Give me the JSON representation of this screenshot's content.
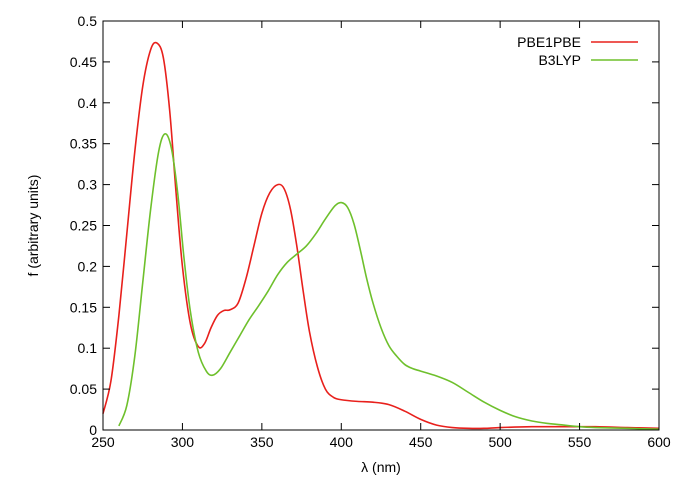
{
  "chart_data": {
    "type": "line",
    "xlabel": "λ (nm)",
    "ylabel": "f (arbitrary units)",
    "xlim": [
      250,
      600
    ],
    "ylim": [
      0,
      0.5
    ],
    "x_ticks": [
      250,
      300,
      350,
      400,
      450,
      500,
      550,
      600
    ],
    "y_ticks": [
      0,
      0.05,
      0.1,
      0.15,
      0.2,
      0.25,
      0.3,
      0.35,
      0.4,
      0.45,
      0.5
    ],
    "x_tick_labels": [
      "250",
      "300",
      "350",
      "400",
      "450",
      "500",
      "550",
      "600"
    ],
    "y_tick_labels": [
      "0",
      "0.05",
      "0.1",
      "0.15",
      "0.2",
      "0.25",
      "0.3",
      "0.35",
      "0.4",
      "0.45",
      "0.5"
    ],
    "grid": false,
    "legend_position": "top-right",
    "series": [
      {
        "name": "PBE1PBE",
        "color": "#e8201c",
        "points": [
          [
            250,
            0.02
          ],
          [
            255,
            0.06
          ],
          [
            260,
            0.14
          ],
          [
            265,
            0.24
          ],
          [
            270,
            0.34
          ],
          [
            275,
            0.42
          ],
          [
            280,
            0.465
          ],
          [
            284,
            0.473
          ],
          [
            288,
            0.455
          ],
          [
            292,
            0.39
          ],
          [
            296,
            0.29
          ],
          [
            300,
            0.2
          ],
          [
            305,
            0.13
          ],
          [
            310,
            0.102
          ],
          [
            314,
            0.106
          ],
          [
            318,
            0.125
          ],
          [
            322,
            0.14
          ],
          [
            326,
            0.146
          ],
          [
            330,
            0.147
          ],
          [
            335,
            0.155
          ],
          [
            340,
            0.185
          ],
          [
            345,
            0.225
          ],
          [
            350,
            0.265
          ],
          [
            355,
            0.29
          ],
          [
            360,
            0.3
          ],
          [
            364,
            0.295
          ],
          [
            368,
            0.27
          ],
          [
            372,
            0.225
          ],
          [
            376,
            0.17
          ],
          [
            380,
            0.12
          ],
          [
            385,
            0.077
          ],
          [
            390,
            0.05
          ],
          [
            395,
            0.04
          ],
          [
            400,
            0.037
          ],
          [
            410,
            0.035
          ],
          [
            420,
            0.034
          ],
          [
            430,
            0.031
          ],
          [
            440,
            0.023
          ],
          [
            450,
            0.013
          ],
          [
            460,
            0.006
          ],
          [
            470,
            0.003
          ],
          [
            480,
            0.002
          ],
          [
            490,
            0.002
          ],
          [
            500,
            0.003
          ],
          [
            520,
            0.004
          ],
          [
            540,
            0.004
          ],
          [
            560,
            0.004
          ],
          [
            580,
            0.003
          ],
          [
            600,
            0.002
          ]
        ]
      },
      {
        "name": "B3LYP",
        "color": "#6ec02c",
        "points": [
          [
            260,
            0.005
          ],
          [
            265,
            0.03
          ],
          [
            270,
            0.09
          ],
          [
            275,
            0.18
          ],
          [
            280,
            0.27
          ],
          [
            285,
            0.34
          ],
          [
            289,
            0.362
          ],
          [
            293,
            0.345
          ],
          [
            297,
            0.29
          ],
          [
            301,
            0.21
          ],
          [
            305,
            0.145
          ],
          [
            310,
            0.095
          ],
          [
            315,
            0.072
          ],
          [
            319,
            0.067
          ],
          [
            324,
            0.075
          ],
          [
            330,
            0.095
          ],
          [
            336,
            0.115
          ],
          [
            342,
            0.135
          ],
          [
            348,
            0.152
          ],
          [
            354,
            0.17
          ],
          [
            360,
            0.19
          ],
          [
            366,
            0.205
          ],
          [
            372,
            0.215
          ],
          [
            378,
            0.225
          ],
          [
            384,
            0.24
          ],
          [
            390,
            0.258
          ],
          [
            396,
            0.274
          ],
          [
            400,
            0.278
          ],
          [
            404,
            0.272
          ],
          [
            408,
            0.252
          ],
          [
            412,
            0.22
          ],
          [
            416,
            0.185
          ],
          [
            420,
            0.155
          ],
          [
            425,
            0.125
          ],
          [
            430,
            0.103
          ],
          [
            435,
            0.09
          ],
          [
            440,
            0.08
          ],
          [
            445,
            0.075
          ],
          [
            450,
            0.072
          ],
          [
            460,
            0.066
          ],
          [
            470,
            0.058
          ],
          [
            480,
            0.046
          ],
          [
            490,
            0.034
          ],
          [
            500,
            0.024
          ],
          [
            510,
            0.016
          ],
          [
            520,
            0.011
          ],
          [
            530,
            0.008
          ],
          [
            540,
            0.006
          ],
          [
            550,
            0.004
          ],
          [
            560,
            0.003
          ],
          [
            580,
            0.002
          ],
          [
            600,
            0.001
          ]
        ]
      }
    ]
  }
}
